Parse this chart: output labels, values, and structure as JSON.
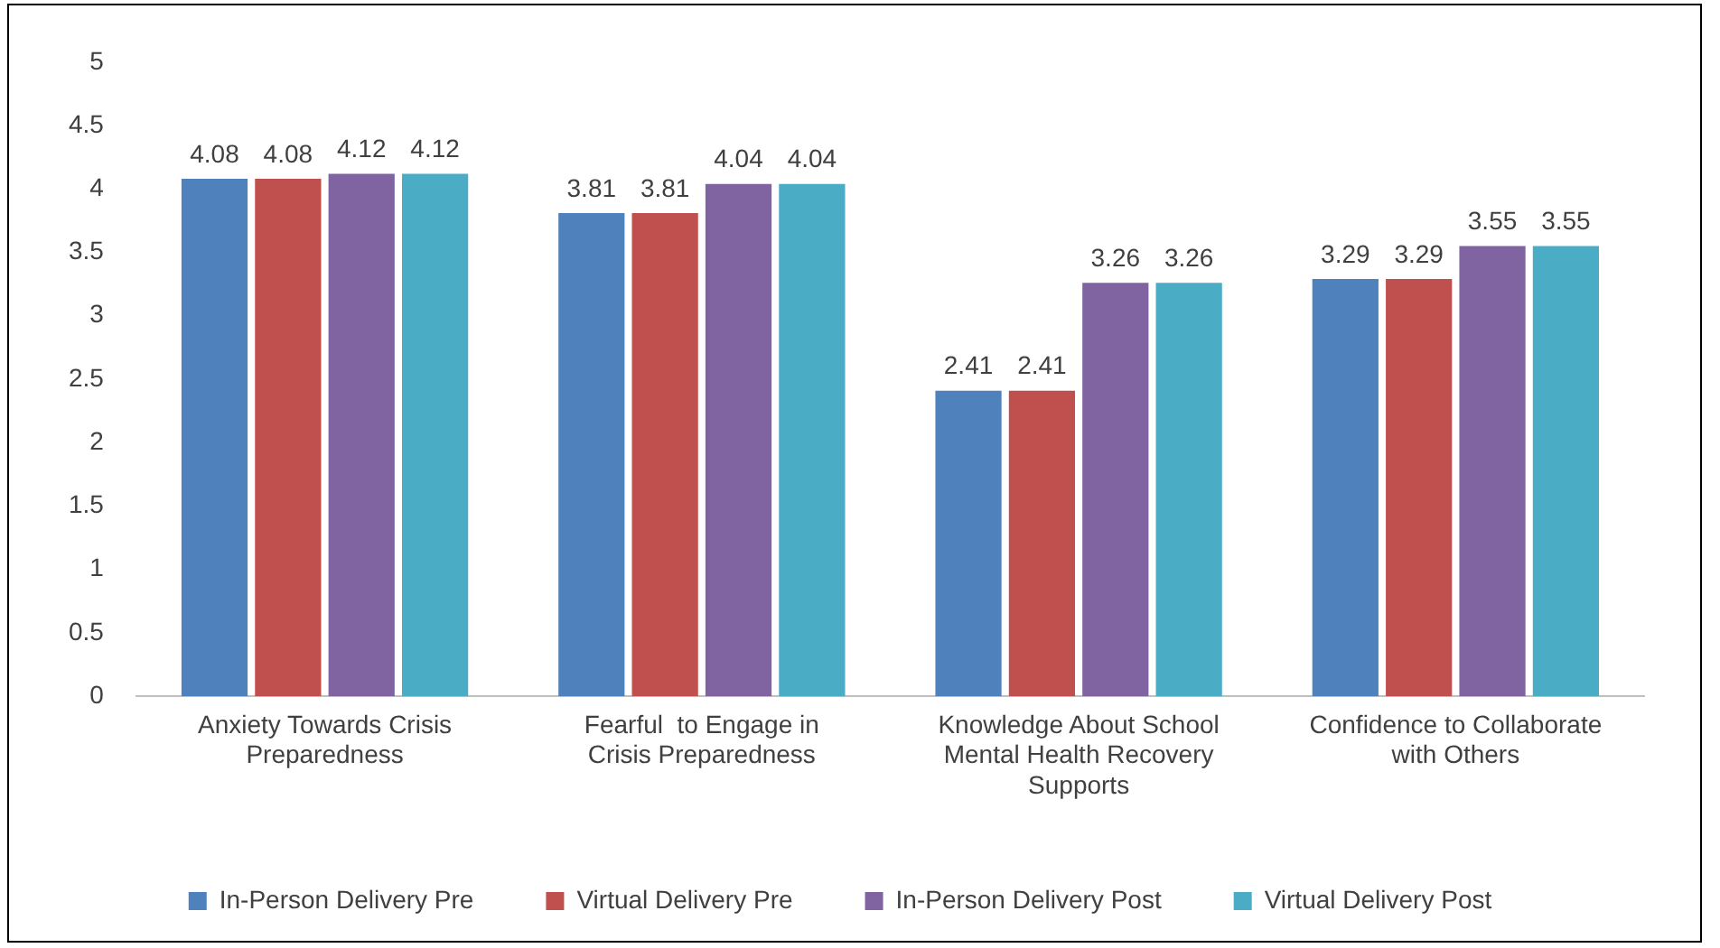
{
  "chart_data": {
    "type": "bar",
    "categories": [
      "Anxiety Towards Crisis Preparedness",
      "Fearful  to Engage in Crisis Preparedness",
      "Knowledge About School Mental Health Recovery Supports",
      "Confidence to Collaborate with Others"
    ],
    "series": [
      {
        "name": "In-Person Delivery Pre",
        "color": "#4f81bd",
        "values": [
          4.08,
          3.81,
          2.41,
          3.29
        ]
      },
      {
        "name": "Virtual Delivery Pre",
        "color": "#c0504d",
        "values": [
          4.08,
          3.81,
          2.41,
          3.29
        ]
      },
      {
        "name": "In-Person Delivery Post",
        "color": "#8064a2",
        "values": [
          4.12,
          4.04,
          3.26,
          3.55
        ]
      },
      {
        "name": "Virtual Delivery Post",
        "color": "#4bacc6",
        "values": [
          4.12,
          4.04,
          3.26,
          3.55
        ]
      }
    ],
    "ylim": [
      0,
      5
    ],
    "yticks": [
      0,
      0.5,
      1,
      1.5,
      2,
      2.5,
      3,
      3.5,
      4,
      4.5,
      5
    ],
    "grid": false,
    "legend": "bottom",
    "data_labels": true
  }
}
